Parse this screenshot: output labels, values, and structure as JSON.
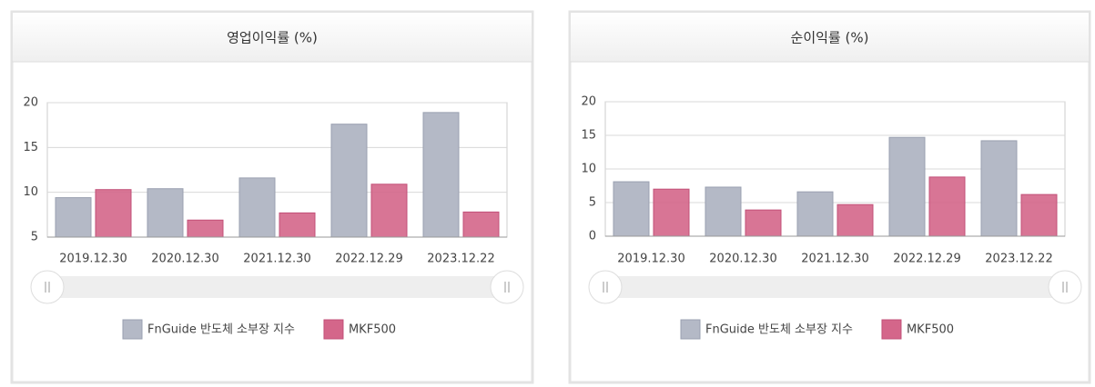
{
  "chart_data": [
    {
      "type": "bar",
      "title": "영업이익률 (%)",
      "categories": [
        "2019.12.30",
        "2020.12.30",
        "2021.12.30",
        "2022.12.29",
        "2023.12.22"
      ],
      "series": [
        {
          "name": "FnGuide 반도체 소부장 지수",
          "color": "#b4b9c6",
          "values": [
            9.4,
            10.4,
            11.6,
            17.6,
            18.9
          ]
        },
        {
          "name": "MKF500",
          "color": "#d4668a",
          "values": [
            10.3,
            6.9,
            7.7,
            10.9,
            7.8
          ]
        }
      ],
      "ylim": [
        5,
        20
      ],
      "yticks": [
        5,
        10,
        15,
        20
      ],
      "grid": true,
      "legend": "bottom"
    },
    {
      "type": "bar",
      "title": "순이익률 (%)",
      "categories": [
        "2019.12.30",
        "2020.12.30",
        "2021.12.30",
        "2022.12.29",
        "2023.12.22"
      ],
      "series": [
        {
          "name": "FnGuide 반도체 소부장 지수",
          "color": "#b4b9c6",
          "values": [
            8.1,
            7.3,
            6.6,
            14.7,
            14.2
          ]
        },
        {
          "name": "MKF500",
          "color": "#d4668a",
          "values": [
            7.0,
            3.9,
            4.7,
            8.8,
            6.2
          ]
        }
      ],
      "ylim": [
        0,
        20
      ],
      "yticks": [
        0,
        5,
        10,
        15,
        20
      ],
      "grid": true,
      "legend": "bottom"
    }
  ]
}
